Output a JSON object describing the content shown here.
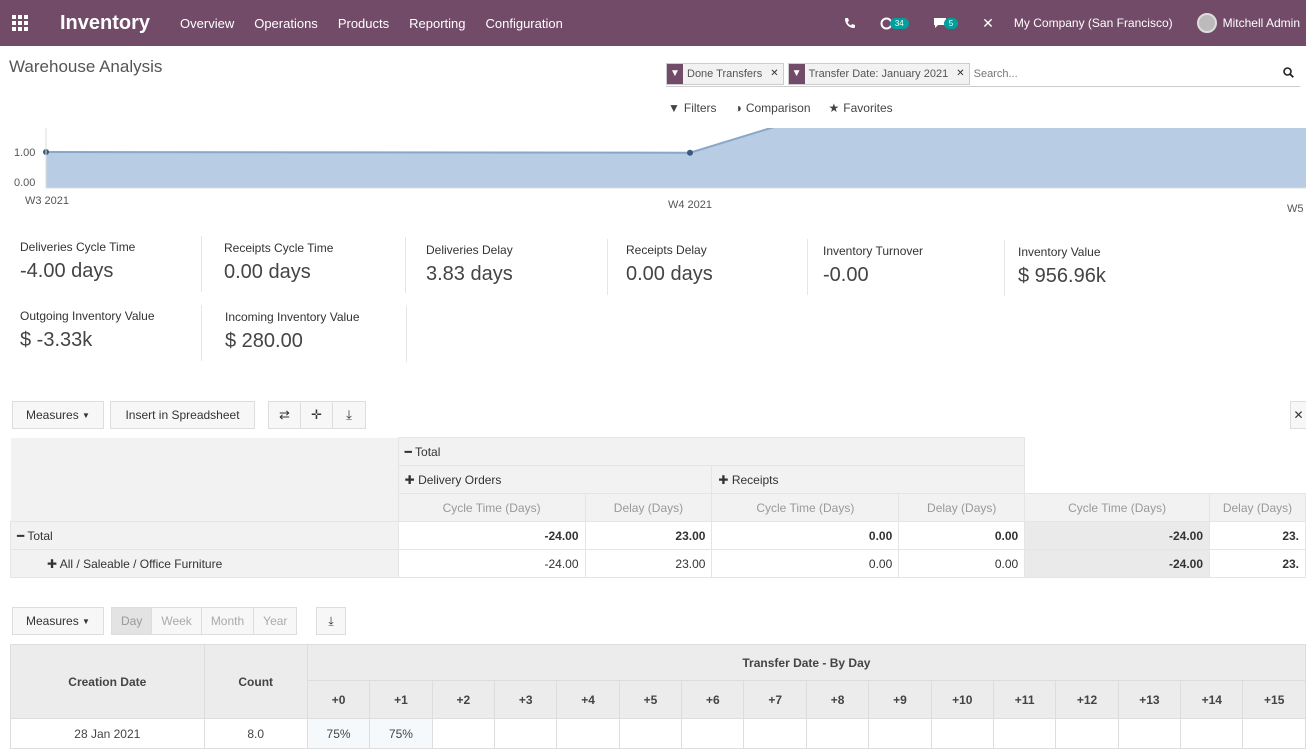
{
  "navbar": {
    "app_title": "Inventory",
    "menu": [
      "Overview",
      "Operations",
      "Products",
      "Reporting",
      "Configuration"
    ],
    "activity_badge": "34",
    "messages_badge": "5",
    "company": "My Company (San Francisco)",
    "user": "Mitchell Admin"
  },
  "control_panel": {
    "title": "Warehouse Analysis",
    "facets": [
      "Done Transfers",
      "Transfer Date: January 2021"
    ],
    "search_placeholder": "Search...",
    "filters_label": "Filters",
    "comparison_label": "Comparison",
    "favorites_label": "Favorites"
  },
  "chart_data": {
    "type": "area",
    "y_ticks": [
      "1.00",
      "0.00"
    ],
    "x_ticks": [
      "W3 2021",
      "W4 2021",
      "W5"
    ],
    "points": [
      {
        "x": "W3 2021",
        "y": 1.0
      },
      {
        "x": "W4 2021",
        "y": 0.98
      },
      {
        "x": "W5",
        "y": 2.0
      }
    ],
    "color": "#b8cce4"
  },
  "kpis": [
    {
      "label": "Deliveries Cycle Time",
      "value": "-4.00 days"
    },
    {
      "label": "Receipts Cycle Time",
      "value": "0.00 days"
    },
    {
      "label": "Deliveries Delay",
      "value": "3.83 days"
    },
    {
      "label": "Receipts Delay",
      "value": "0.00 days"
    },
    {
      "label": "Inventory Turnover",
      "value": "-0.00"
    },
    {
      "label": "Inventory Value",
      "value": "$ 956.96k"
    },
    {
      "label": "Outgoing Inventory Value",
      "value": "$ -3.33k"
    },
    {
      "label": "Incoming Inventory Value",
      "value": "$ 280.00"
    }
  ],
  "pivot_toolbar": {
    "measures_label": "Measures",
    "insert_label": "Insert in Spreadsheet"
  },
  "pivot": {
    "total_header": "Total",
    "groups": [
      "Delivery Orders",
      "Receipts"
    ],
    "measures": [
      "Cycle Time (Days)",
      "Delay (Days)",
      "Cycle Time (Days)",
      "Delay (Days)",
      "Cycle Time (Days)",
      "Delay (Days)"
    ],
    "rows": [
      {
        "label": "Total",
        "cells": [
          "-24.00",
          "23.00",
          "0.00",
          "0.00",
          "-24.00",
          "23."
        ]
      },
      {
        "label": "All / Saleable / Office Furniture",
        "cells": [
          "-24.00",
          "23.00",
          "0.00",
          "0.00",
          "-24.00",
          "23."
        ]
      }
    ]
  },
  "cohort_toolbar": {
    "measures_label": "Measures",
    "periods": [
      "Day",
      "Week",
      "Month",
      "Year"
    ],
    "active_period": "Day"
  },
  "cohort": {
    "col_creation": "Creation Date",
    "col_count": "Count",
    "group_header": "Transfer Date - By Day",
    "intervals": [
      "+0",
      "+1",
      "+2",
      "+3",
      "+4",
      "+5",
      "+6",
      "+7",
      "+8",
      "+9",
      "+10",
      "+11",
      "+12",
      "+13",
      "+14",
      "+15"
    ],
    "rows": [
      {
        "date": "28 Jan 2021",
        "count": "8.0",
        "values": [
          "75%",
          "75%",
          "",
          "",
          "",
          "",
          "",
          "",
          "",
          "",
          "",
          "",
          "",
          "",
          "",
          ""
        ]
      }
    ]
  }
}
